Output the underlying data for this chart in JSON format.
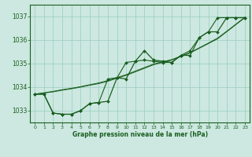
{
  "xlabel": "Graphe pression niveau de la mer (hPa)",
  "ylim": [
    1032.5,
    1037.5
  ],
  "xlim": [
    -0.5,
    23.5
  ],
  "yticks": [
    1033,
    1034,
    1035,
    1036,
    1037
  ],
  "xticks": [
    0,
    1,
    2,
    3,
    4,
    5,
    6,
    7,
    8,
    9,
    10,
    11,
    12,
    13,
    14,
    15,
    16,
    17,
    18,
    19,
    20,
    21,
    22,
    23
  ],
  "bg_color": "#cce8e0",
  "grid_color": "#99ccc0",
  "line_color": "#1a5e20",
  "line_zigzag": [
    1033.7,
    1033.7,
    1032.9,
    1032.85,
    1032.85,
    1033.0,
    1033.3,
    1033.35,
    1033.4,
    1034.4,
    1034.35,
    1035.1,
    1035.55,
    1035.15,
    1035.1,
    1035.05,
    1035.35,
    1035.35,
    1036.1,
    1036.35,
    1036.35,
    1036.95,
    1036.95,
    1036.95
  ],
  "line_s1": [
    1033.7,
    1033.7,
    1032.9,
    1032.85,
    1032.85,
    1033.0,
    1033.3,
    1033.35,
    1034.35,
    1034.4,
    1035.05,
    1035.1,
    1035.15,
    1035.1,
    1035.05,
    1035.05,
    1035.35,
    1035.55,
    1036.1,
    1036.35,
    1036.95,
    1036.95,
    1036.95,
    1036.95
  ],
  "line_s2": [
    1033.7,
    1033.75,
    1033.8,
    1033.87,
    1033.93,
    1034.0,
    1034.08,
    1034.15,
    1034.25,
    1034.38,
    1034.5,
    1034.65,
    1034.8,
    1034.95,
    1035.05,
    1035.15,
    1035.3,
    1035.45,
    1035.65,
    1035.85,
    1036.05,
    1036.35,
    1036.65,
    1036.95
  ],
  "line_s3": [
    1033.7,
    1033.76,
    1033.82,
    1033.89,
    1033.95,
    1034.02,
    1034.1,
    1034.18,
    1034.28,
    1034.41,
    1034.53,
    1034.68,
    1034.83,
    1034.98,
    1035.08,
    1035.17,
    1035.32,
    1035.47,
    1035.67,
    1035.87,
    1036.08,
    1036.37,
    1036.67,
    1036.97
  ]
}
